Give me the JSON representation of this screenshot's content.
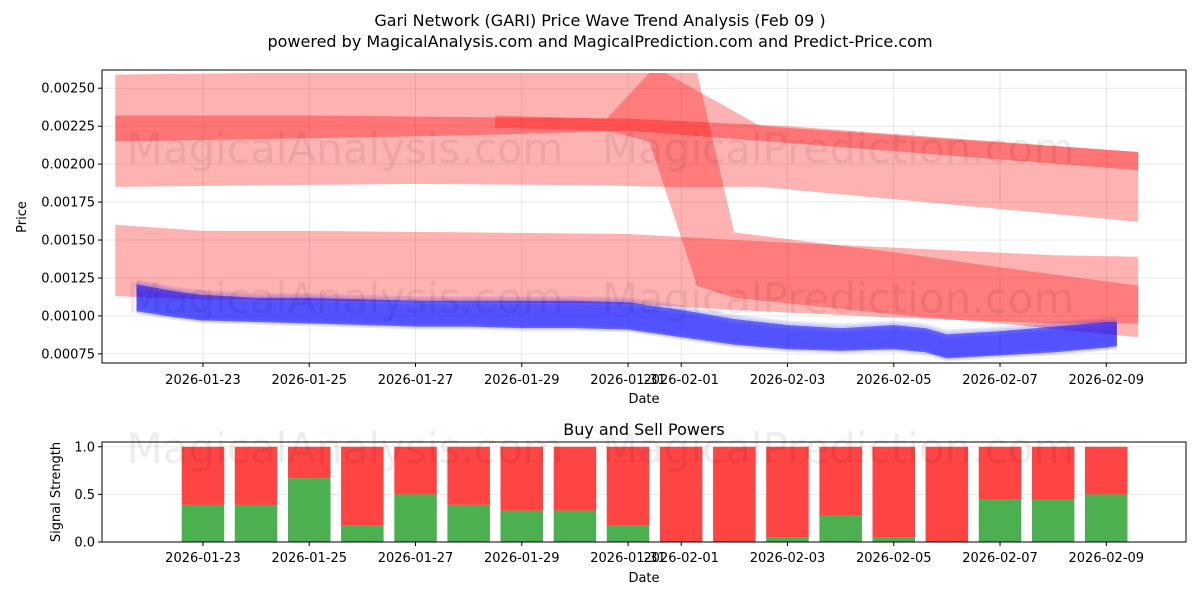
{
  "header": {
    "title": "Gari Network (GARI) Price Wave Trend Analysis (Feb 09 )",
    "subtitle": "powered by MagicalAnalysis.com and MagicalPrediction.com and Predict-Price.com"
  },
  "watermarks": [
    "MagicalAnalysis.com",
    "MagicalPrediction.com"
  ],
  "colors": {
    "band_red": "#ff0000",
    "series_blue": "#0000ff",
    "buy_green": "#4caf50",
    "sell_red": "#ff4444"
  },
  "chart_data": [
    {
      "type": "area",
      "title": "",
      "xlabel": "Date",
      "ylabel": "Price",
      "xlim_days": [
        -1.9,
        18.5
      ],
      "ylim": [
        0.00069,
        0.00262
      ],
      "x_ticks": [
        {
          "day": 0,
          "label": "2026-01-23"
        },
        {
          "day": 2,
          "label": "2026-01-25"
        },
        {
          "day": 4,
          "label": "2026-01-27"
        },
        {
          "day": 6,
          "label": "2026-01-29"
        },
        {
          "day": 8,
          "label": "2026-01-31"
        },
        {
          "day": 9,
          "label": "2026-02-01"
        },
        {
          "day": 11,
          "label": "2026-02-03"
        },
        {
          "day": 13,
          "label": "2026-02-05"
        },
        {
          "day": 15,
          "label": "2026-02-07"
        },
        {
          "day": 17,
          "label": "2026-02-09"
        }
      ],
      "y_ticks": [
        {
          "value": 0.0025,
          "label": "0.00250"
        },
        {
          "value": 0.00225,
          "label": "0.00225"
        },
        {
          "value": 0.002,
          "label": "0.00200"
        },
        {
          "value": 0.00175,
          "label": "0.00175"
        },
        {
          "value": 0.0015,
          "label": "0.00150"
        },
        {
          "value": 0.00125,
          "label": "0.00125"
        },
        {
          "value": 0.001,
          "label": "0.00100"
        },
        {
          "value": 0.00075,
          "label": "0.00075"
        }
      ],
      "bands": [
        {
          "name": "upper-wave-band",
          "opacity": 0.3,
          "x": [
            -1.65,
            1,
            4,
            7.5,
            8.7,
            10.5,
            17.6
          ],
          "upper": [
            0.00259,
            0.0026,
            0.0026,
            0.0026,
            0.0026,
            0.00225,
            0.00208
          ],
          "lower": [
            0.00185,
            0.00186,
            0.00187,
            0.00186,
            0.00185,
            0.00185,
            0.00162
          ]
        },
        {
          "name": "upper-core-band",
          "opacity": 0.35,
          "x": [
            -1.65,
            2,
            5,
            8,
            11,
            17.6
          ],
          "upper": [
            0.00232,
            0.00232,
            0.00231,
            0.0023,
            0.00225,
            0.00208
          ],
          "lower": [
            0.00215,
            0.00217,
            0.00219,
            0.00222,
            0.00214,
            0.00196
          ]
        },
        {
          "name": "crossing-wave-band",
          "opacity": 0.3,
          "x": [
            5.5,
            7.6,
            8.4,
            9.3,
            10,
            13,
            15,
            17.6
          ],
          "upper": [
            0.00232,
            0.0023,
            0.0026,
            0.0026,
            0.00155,
            0.00142,
            0.00132,
            0.0012
          ],
          "lower": [
            0.00224,
            0.00222,
            0.00215,
            0.0012,
            0.00112,
            0.00101,
            0.00095,
            0.00086
          ]
        },
        {
          "name": "lower-wave-band",
          "opacity": 0.3,
          "x": [
            -1.65,
            0,
            2,
            5,
            8,
            10,
            13,
            16,
            17.6
          ],
          "upper": [
            0.0016,
            0.00156,
            0.00156,
            0.00155,
            0.00154,
            0.0015,
            0.00145,
            0.0014,
            0.00139
          ],
          "lower": [
            0.00113,
            0.00111,
            0.0011,
            0.00109,
            0.00108,
            0.00104,
            0.00099,
            0.00095,
            0.00095
          ]
        }
      ],
      "series": [
        {
          "name": "price-wave-main",
          "x": [
            -1.25,
            -0.5,
            0,
            1,
            2,
            3,
            4,
            5,
            6,
            7,
            8,
            9,
            10,
            11,
            12,
            13,
            13.6,
            14,
            15,
            16,
            17,
            17.2
          ],
          "upper": [
            0.00121,
            0.00116,
            0.00114,
            0.00112,
            0.00112,
            0.00111,
            0.0011,
            0.0011,
            0.0011,
            0.0011,
            0.00109,
            0.00104,
            0.00098,
            0.00094,
            0.00092,
            0.00094,
            0.00092,
            0.00088,
            0.0009,
            0.00093,
            0.00096,
            0.00096
          ],
          "lower": [
            0.00103,
            0.00099,
            0.00097,
            0.00096,
            0.00095,
            0.00094,
            0.00093,
            0.00093,
            0.00092,
            0.00092,
            0.00091,
            0.00086,
            0.00081,
            0.00078,
            0.00077,
            0.00078,
            0.00076,
            0.00072,
            0.00074,
            0.00076,
            0.00079,
            0.0008
          ]
        }
      ]
    },
    {
      "type": "bar",
      "title": "Buy and Sell Powers",
      "xlabel": "Date",
      "ylabel": "Signal Strength",
      "ylim": [
        0,
        1.05
      ],
      "xlim_days": [
        -1.9,
        18.5
      ],
      "y_ticks": [
        {
          "value": 0,
          "label": "0.0"
        },
        {
          "value": 0.5,
          "label": "0.5"
        },
        {
          "value": 1,
          "label": "1.0"
        }
      ],
      "x_ticks": [
        {
          "day": 0,
          "label": "2026-01-23"
        },
        {
          "day": 2,
          "label": "2026-01-25"
        },
        {
          "day": 4,
          "label": "2026-01-27"
        },
        {
          "day": 6,
          "label": "2026-01-29"
        },
        {
          "day": 8,
          "label": "2026-01-31"
        },
        {
          "day": 9,
          "label": "2026-02-01"
        },
        {
          "day": 11,
          "label": "2026-02-03"
        },
        {
          "day": 13,
          "label": "2026-02-05"
        },
        {
          "day": 15,
          "label": "2026-02-07"
        },
        {
          "day": 17,
          "label": "2026-02-09"
        }
      ],
      "categories_days": [
        0,
        1,
        2,
        3,
        4,
        5,
        6,
        7,
        8,
        9,
        10,
        11,
        12,
        13,
        14,
        15,
        16,
        17
      ],
      "series": [
        {
          "name": "Buy",
          "values": [
            0.39,
            0.39,
            0.67,
            0.17,
            0.5,
            0.39,
            0.33,
            0.33,
            0.17,
            0.0,
            0.0,
            0.05,
            0.28,
            0.05,
            0.0,
            0.45,
            0.45,
            0.5
          ]
        },
        {
          "name": "Sell",
          "values": [
            0.61,
            0.61,
            0.33,
            0.83,
            0.5,
            0.61,
            0.67,
            0.67,
            0.83,
            1.0,
            1.0,
            0.95,
            0.72,
            0.95,
            1.0,
            0.55,
            0.55,
            0.5
          ]
        }
      ]
    }
  ]
}
